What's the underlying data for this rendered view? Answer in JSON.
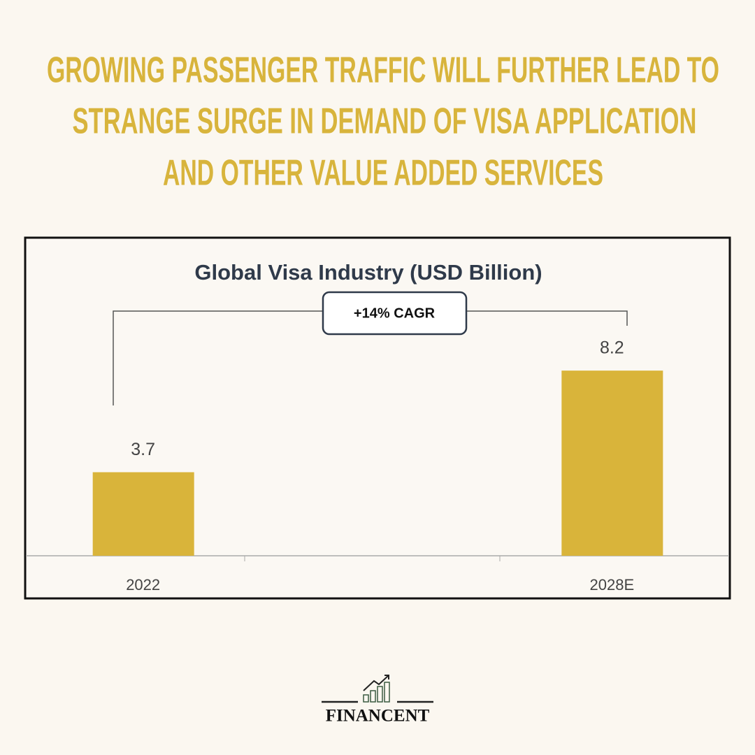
{
  "headline": [
    "GROWING PASSENGER TRAFFIC WILL FURTHER LEAD TO",
    "STRANGE SURGE IN DEMAND OF VISA APPLICATION",
    "AND OTHER VALUE ADDED SERVICES"
  ],
  "chart_data": {
    "type": "bar",
    "title": "Global Visa Industry (USD Billion)",
    "categories": [
      "2022",
      null,
      "2028E"
    ],
    "values": [
      3.7,
      null,
      8.2
    ],
    "color": "#d9b43a",
    "ylim": [
      0,
      10
    ],
    "annotation": "+14% CAGR"
  },
  "brand": "FINANCENT"
}
